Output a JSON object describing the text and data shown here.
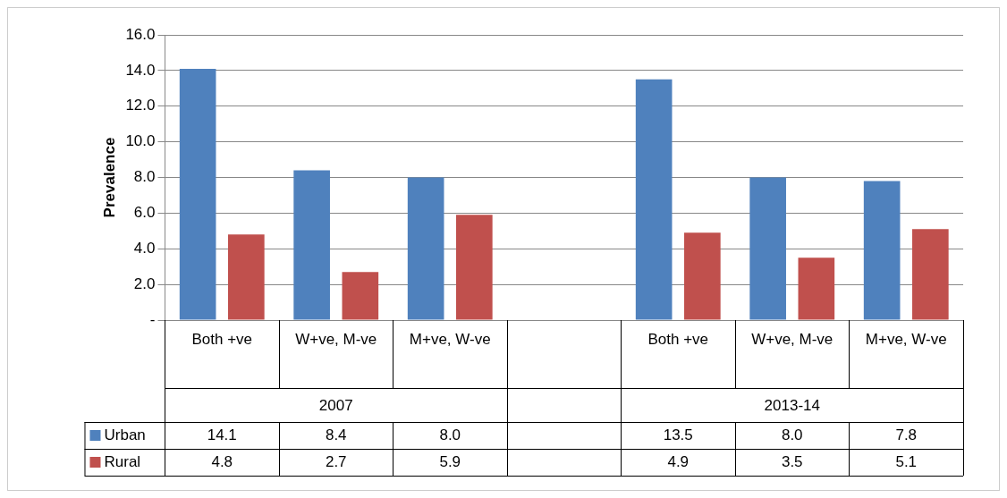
{
  "chart_data": {
    "type": "bar",
    "ylabel": "Prevalence",
    "categories": [
      "Both +ve",
      "W+ve, M-ve",
      "M+ve, W-ve",
      null,
      "Both +ve",
      "W+ve, M-ve",
      "M+ve, W-ve"
    ],
    "series": [
      {
        "name": "Urban",
        "color": "#4f81bd",
        "values": [
          14.1,
          8.4,
          8.0,
          null,
          13.5,
          8.0,
          7.8
        ],
        "value_labels": [
          "14.1",
          "8.4",
          "8.0",
          null,
          "13.5",
          "8.0",
          "7.8"
        ]
      },
      {
        "name": "Rural",
        "color": "#c0504d",
        "values": [
          4.8,
          2.7,
          5.9,
          null,
          4.9,
          3.5,
          5.1
        ],
        "value_labels": [
          "4.8",
          "2.7",
          "5.9",
          null,
          "4.9",
          "3.5",
          "5.1"
        ]
      }
    ],
    "annotations": [
      "2007",
      "2013-14"
    ],
    "ylim": [
      0,
      16
    ],
    "yticks": [
      {
        "value": 0,
        "label": "-"
      },
      {
        "value": 2,
        "label": "2.0"
      },
      {
        "value": 4,
        "label": "4.0"
      },
      {
        "value": 6,
        "label": "6.0"
      },
      {
        "value": 8,
        "label": "8.0"
      },
      {
        "value": 10,
        "label": "10.0"
      },
      {
        "value": 12,
        "label": "12.0"
      },
      {
        "value": 14,
        "label": "14.0"
      },
      {
        "value": 16,
        "label": "16.0"
      }
    ],
    "grid": "y",
    "legend": "bottom"
  }
}
